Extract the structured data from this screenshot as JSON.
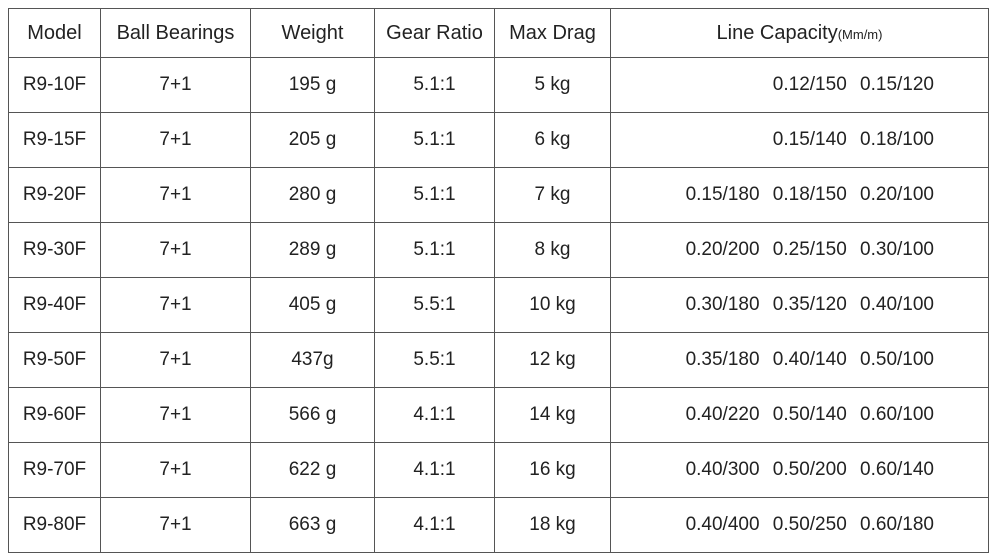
{
  "table": {
    "headers": {
      "model": "Model",
      "ball_bearings": "Ball Bearings",
      "weight": "Weight",
      "gear_ratio": "Gear Ratio",
      "max_drag": "Max Drag",
      "line_capacity": "Line Capacity",
      "line_capacity_unit": "(Mm/m)"
    },
    "rows": [
      {
        "model": "R9-10F",
        "ball_bearings": "7+1",
        "weight": "195 g",
        "gear_ratio": "5.1:1",
        "max_drag": "5 kg",
        "line_capacity": "0.12/150   0.15/120"
      },
      {
        "model": "R9-15F",
        "ball_bearings": "7+1",
        "weight": "205 g",
        "gear_ratio": "5.1:1",
        "max_drag": "6 kg",
        "line_capacity": "0.15/140   0.18/100"
      },
      {
        "model": "R9-20F",
        "ball_bearings": "7+1",
        "weight": "280 g",
        "gear_ratio": "5.1:1",
        "max_drag": "7 kg",
        "line_capacity": "0.15/180   0.18/150   0.20/100"
      },
      {
        "model": "R9-30F",
        "ball_bearings": "7+1",
        "weight": "289 g",
        "gear_ratio": "5.1:1",
        "max_drag": "8 kg",
        "line_capacity": "0.20/200   0.25/150   0.30/100"
      },
      {
        "model": "R9-40F",
        "ball_bearings": "7+1",
        "weight": "405 g",
        "gear_ratio": "5.5:1",
        "max_drag": "10 kg",
        "line_capacity": "0.30/180   0.35/120   0.40/100"
      },
      {
        "model": "R9-50F",
        "ball_bearings": "7+1",
        "weight": "437g",
        "gear_ratio": "5.5:1",
        "max_drag": "12 kg",
        "line_capacity": "0.35/180   0.40/140   0.50/100"
      },
      {
        "model": "R9-60F",
        "ball_bearings": "7+1",
        "weight": "566 g",
        "gear_ratio": "4.1:1",
        "max_drag": "14 kg",
        "line_capacity": "0.40/220   0.50/140   0.60/100"
      },
      {
        "model": "R9-70F",
        "ball_bearings": "7+1",
        "weight": "622 g",
        "gear_ratio": "4.1:1",
        "max_drag": "16 kg",
        "line_capacity": "0.40/300   0.50/200   0.60/140"
      },
      {
        "model": "R9-80F",
        "ball_bearings": "7+1",
        "weight": "663 g",
        "gear_ratio": "4.1:1",
        "max_drag": "18 kg",
        "line_capacity": "0.40/400   0.50/250   0.60/180"
      }
    ]
  }
}
